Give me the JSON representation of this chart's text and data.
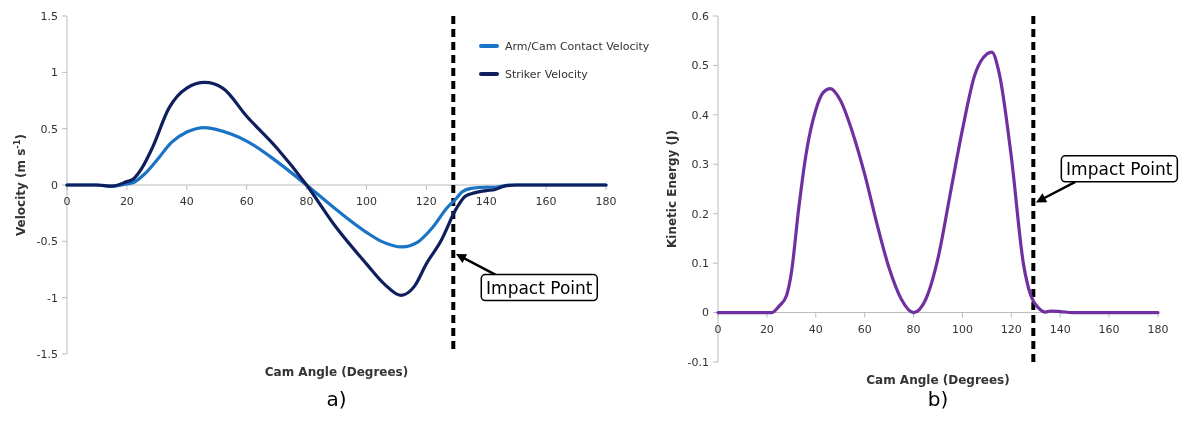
{
  "chart_data": [
    {
      "type": "line",
      "xlabel": "Cam Angle (Degrees)",
      "ylabel": "Velocity (m s$^{-1}$)",
      "xlim": [
        0,
        180
      ],
      "xticks": [
        0,
        20,
        40,
        60,
        80,
        100,
        120,
        140,
        160,
        180
      ],
      "ylim": [
        -1.5,
        1.5
      ],
      "yticks": [
        -1.5,
        -1,
        -0.5,
        0,
        0.5,
        1,
        1.5
      ],
      "grid": false,
      "legend": "top right",
      "line_style": "solid",
      "marker": "none",
      "series": [
        {
          "name": "Arm/Cam Contact Velocity",
          "color": "#1a73c4",
          "x": [
            0,
            10,
            15,
            20,
            22,
            26,
            30,
            35,
            40,
            46,
            55,
            60,
            70,
            80,
            90,
            100,
            105,
            112,
            117,
            122,
            127,
            130,
            132,
            135,
            140,
            143,
            148,
            160,
            180
          ],
          "values": [
            0,
            0,
            -0.01,
            0.01,
            0.02,
            0.1,
            0.22,
            0.38,
            0.47,
            0.51,
            0.45,
            0.39,
            0.21,
            0,
            -0.22,
            -0.42,
            -0.5,
            -0.55,
            -0.51,
            -0.38,
            -0.2,
            -0.12,
            -0.06,
            -0.03,
            -0.02,
            -0.02,
            0,
            0,
            0
          ]
        },
        {
          "name": "Striker Velocity",
          "color": "#0f1f5e",
          "x": [
            0,
            10,
            15,
            20,
            22,
            25,
            28.5,
            34,
            40,
            46,
            52,
            60,
            70,
            80,
            90,
            100,
            106,
            111.5,
            116,
            120,
            125,
            130,
            133,
            136,
            140,
            143,
            146,
            150,
            180
          ],
          "values": [
            0,
            0,
            -0.01,
            0.03,
            0.05,
            0.15,
            0.33,
            0.68,
            0.86,
            0.91,
            0.86,
            0.61,
            0.33,
            0,
            -0.38,
            -0.7,
            -0.88,
            -0.98,
            -0.9,
            -0.7,
            -0.49,
            -0.21,
            -0.1,
            -0.07,
            -0.05,
            -0.04,
            -0.01,
            0,
            0
          ]
        }
      ],
      "ref_lines": [
        {
          "axis": "x",
          "value": 129,
          "color": "#000000",
          "line_style": "dashed"
        }
      ],
      "annotations": [
        {
          "text": "Impact Point",
          "x": 129,
          "y": -0.6
        },
        "a)"
      ]
    },
    {
      "type": "line",
      "xlabel": "Cam Angle (Degrees)",
      "ylabel": "Kinetic Energy (J)",
      "xlim": [
        0,
        180
      ],
      "xticks": [
        0,
        20,
        40,
        60,
        80,
        100,
        120,
        140,
        160,
        180
      ],
      "ylim": [
        -0.1,
        0.6
      ],
      "yticks": [
        -0.1,
        0,
        0.1,
        0.2,
        0.3,
        0.4,
        0.5,
        0.6
      ],
      "grid": false,
      "legend": false,
      "line_style": "solid",
      "marker": "none",
      "series": [
        {
          "color": "#7030a0",
          "x": [
            0,
            20,
            22,
            25,
            28,
            30,
            33,
            36,
            40,
            43,
            46,
            50,
            55,
            60,
            65,
            70,
            75,
            80,
            85,
            90,
            95,
            100,
            105,
            110,
            112,
            115,
            120,
            125,
            128,
            131,
            134,
            136,
            140,
            145,
            180
          ],
          "values": [
            0,
            0,
            0,
            0.013,
            0.034,
            0.08,
            0.21,
            0.32,
            0.41,
            0.445,
            0.453,
            0.43,
            0.365,
            0.28,
            0.18,
            0.09,
            0.027,
            0,
            0.027,
            0.11,
            0.24,
            0.37,
            0.48,
            0.523,
            0.527,
            0.485,
            0.315,
            0.097,
            0.034,
            0.01,
            0.001,
            0.003,
            0.002,
            0,
            0
          ]
        }
      ],
      "ref_lines": [
        {
          "axis": "x",
          "value": 129,
          "color": "#000000",
          "line_style": "dashed"
        }
      ],
      "annotations": [
        {
          "text": "Impact Point",
          "x": 129,
          "y": 0.22
        },
        "b)"
      ]
    }
  ]
}
